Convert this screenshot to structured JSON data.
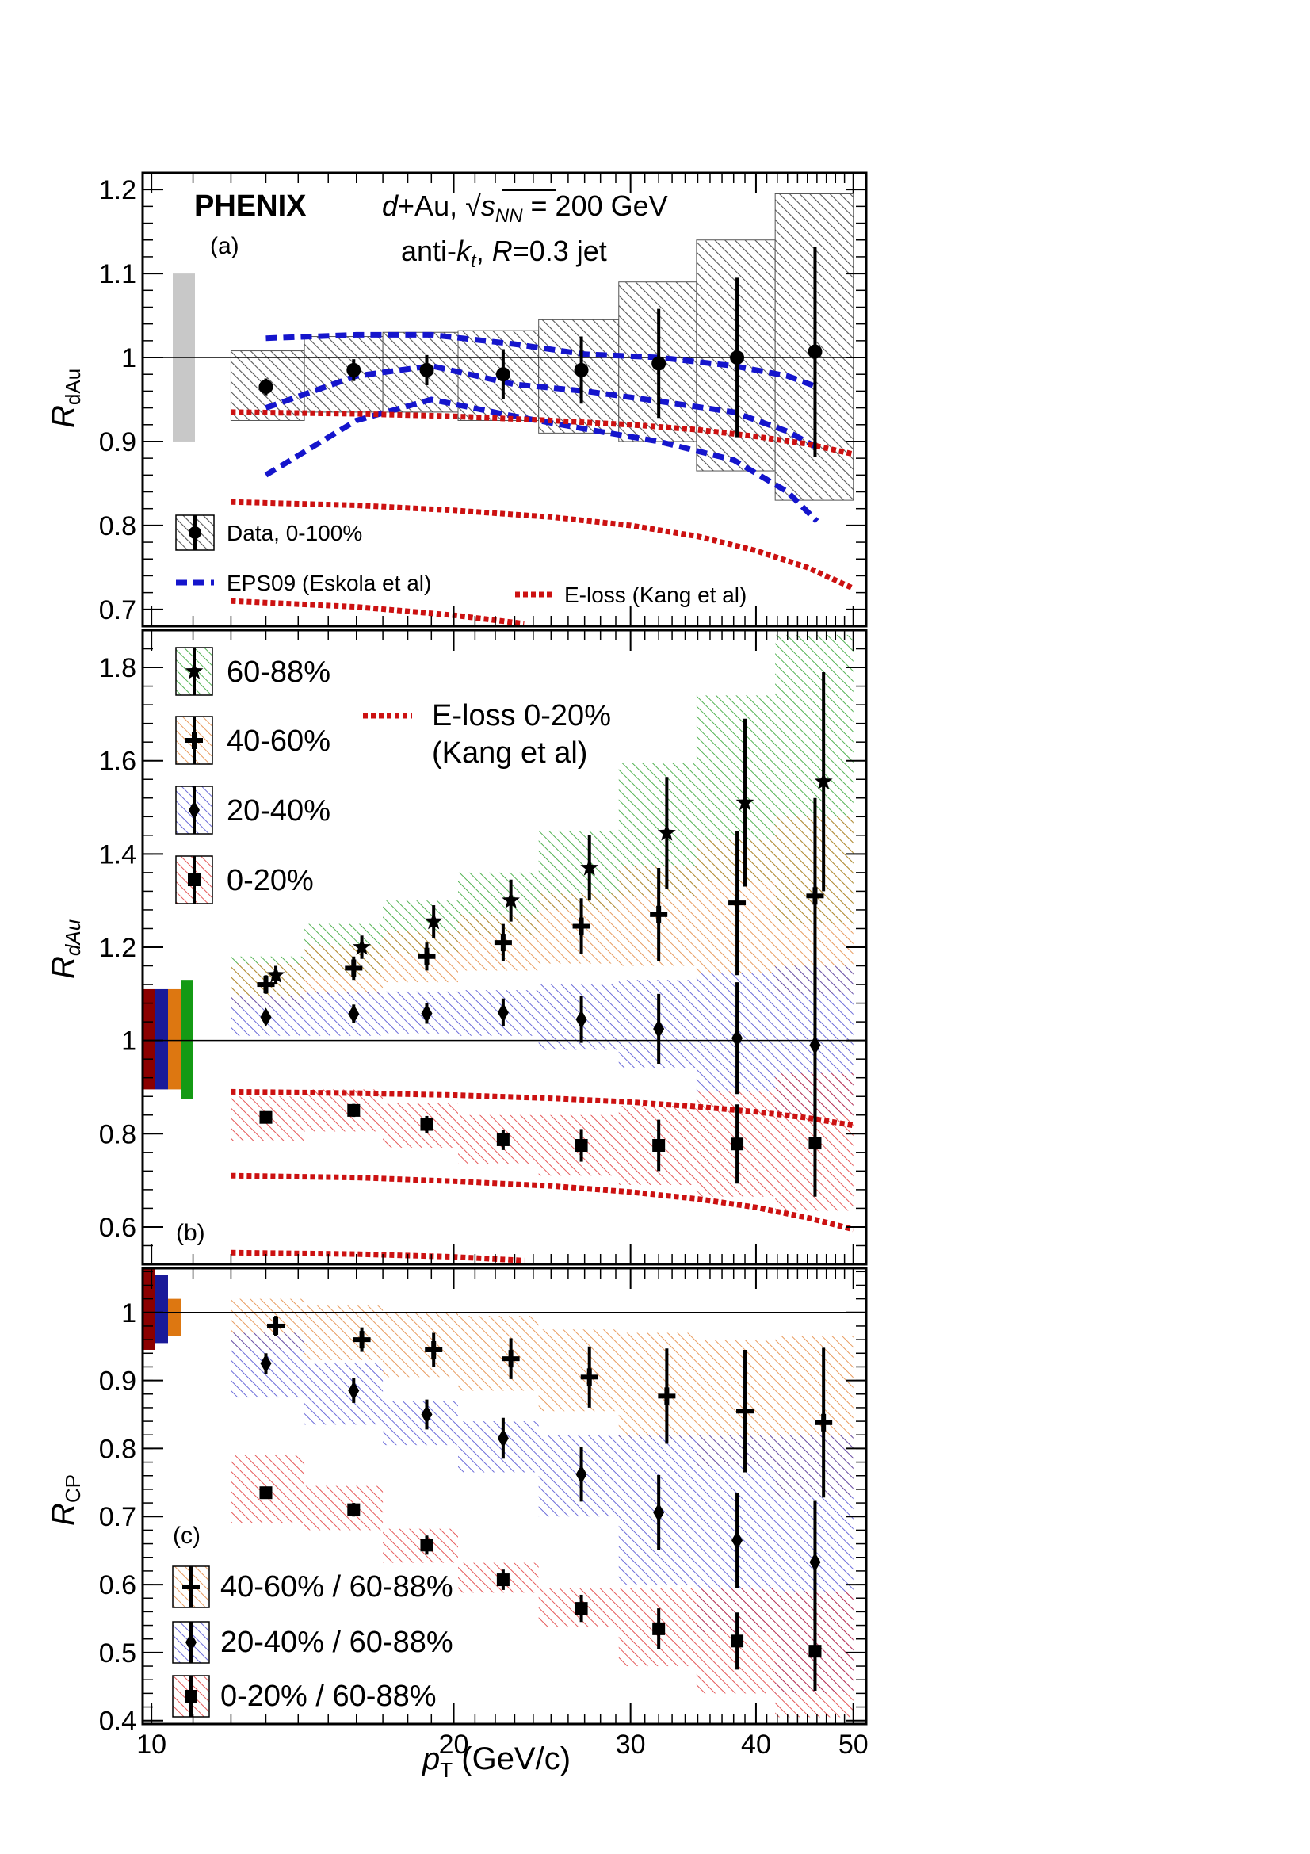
{
  "colors": {
    "data": "#000000",
    "syst_all": "#555555",
    "global_gray": "#c8c8c8",
    "eps09": "#1515cc",
    "eloss": "#cc1111",
    "c6088": "#1a9a1a",
    "c4060": "#e07a2a",
    "c2040": "#3a3acc",
    "c020": "#dd2222",
    "g6088": "#149a14",
    "g4060": "#dd7711",
    "g2040": "#1a1a99",
    "g020": "#8b0000"
  },
  "header": {
    "experiment": "PHENIX",
    "system_prefix": "d",
    "system_rest": "+Au, ",
    "sqrt_symbol": "√",
    "s_label": "s",
    "nn_label": "NN",
    "energy": " = 200 GeV",
    "jet_prefix": "anti-",
    "k_label": "k",
    "t_label": "t",
    "jet_mid": ", ",
    "r_label": "R",
    "jet_suffix": "=0.3 jet"
  },
  "xaxis": {
    "title_p": "p",
    "title_sub": "T",
    "title_unit": " (GeV/c)",
    "ticks": [
      10,
      20,
      30,
      40,
      50
    ],
    "tick_labels": [
      "10",
      "20",
      "30",
      "40",
      "50"
    ],
    "scale": "log",
    "range": [
      9.8,
      51.5
    ]
  },
  "chart_data": [
    {
      "type": "scatter",
      "panel": "a",
      "panel_label": "(a)",
      "ylabel_main": "R",
      "ylabel_sub": "dAu",
      "ylim": [
        0.68,
        1.22
      ],
      "y_ticks": [
        0.7,
        0.8,
        0.9,
        1.0,
        1.1,
        1.2
      ],
      "y_tick_labels": [
        "0.7",
        "0.8",
        "0.9",
        "1",
        "1.1",
        "1.2"
      ],
      "global_uncertainty": [
        0.9,
        1.1
      ],
      "series": [
        {
          "name": "Data, 0-100%",
          "marker": "circle",
          "x": [
            13.0,
            15.9,
            18.8,
            22.4,
            26.8,
            32.0,
            38.3,
            45.8
          ],
          "y": [
            0.965,
            0.985,
            0.985,
            0.98,
            0.985,
            0.993,
            1.0,
            1.007
          ],
          "stat_err": [
            0.01,
            0.013,
            0.018,
            0.03,
            0.04,
            0.065,
            0.095,
            0.125
          ],
          "syst": [
            [
              12.0,
              14.2,
              0.925,
              1.008
            ],
            [
              14.2,
              17.0,
              0.935,
              1.025
            ],
            [
              17.0,
              20.2,
              0.935,
              1.03
            ],
            [
              20.2,
              24.3,
              0.925,
              1.032
            ],
            [
              24.3,
              29.2,
              0.91,
              1.045
            ],
            [
              29.2,
              34.9,
              0.9,
              1.09
            ],
            [
              34.9,
              41.8,
              0.865,
              1.14
            ],
            [
              41.8,
              50.0,
              0.83,
              1.195
            ]
          ]
        }
      ],
      "theory": [
        {
          "name": "EPS09 (Eskola et al)",
          "style": "blue-dashed",
          "x": [
            13,
            16,
            19,
            23,
            27,
            32,
            38,
            43,
            46
          ],
          "y": [
            1.023,
            1.027,
            1.027,
            1.016,
            1.004,
            1.0,
            0.99,
            0.978,
            0.965
          ]
        },
        {
          "style": "blue-dashed",
          "x": [
            13,
            16,
            19,
            23,
            27,
            32,
            38,
            43,
            46
          ],
          "y": [
            0.94,
            0.978,
            0.99,
            0.968,
            0.96,
            0.948,
            0.935,
            0.912,
            0.893
          ]
        },
        {
          "style": "blue-dashed",
          "x": [
            13,
            16,
            19,
            23,
            27,
            32,
            38,
            43,
            46
          ],
          "y": [
            0.86,
            0.925,
            0.95,
            0.93,
            0.915,
            0.9,
            0.878,
            0.84,
            0.805
          ]
        },
        {
          "name": "E-loss (Kang et al)",
          "style": "red-dotted",
          "x": [
            12,
            16,
            20,
            25,
            30,
            35,
            40,
            45,
            50
          ],
          "y": [
            0.935,
            0.933,
            0.93,
            0.925,
            0.92,
            0.914,
            0.906,
            0.897,
            0.885
          ]
        },
        {
          "style": "red-dotted",
          "x": [
            12,
            16,
            20,
            25,
            30,
            35,
            40,
            45,
            50
          ],
          "y": [
            0.828,
            0.824,
            0.818,
            0.81,
            0.8,
            0.787,
            0.77,
            0.75,
            0.725
          ]
        },
        {
          "style": "red-dotted",
          "x": [
            12,
            16,
            20,
            23.5
          ],
          "y": [
            0.71,
            0.703,
            0.693,
            0.683
          ]
        }
      ],
      "legend": [
        "Data, 0-100%",
        "EPS09 (Eskola et al)",
        "E-loss (Kang et al)"
      ]
    },
    {
      "type": "scatter",
      "panel": "b",
      "panel_label": "(b)",
      "ylabel_main": "R",
      "ylabel_sub": "dAu",
      "ylim": [
        0.52,
        1.88
      ],
      "y_ticks": [
        0.6,
        0.8,
        1.0,
        1.2,
        1.4,
        1.6,
        1.8
      ],
      "y_tick_labels": [
        "0.6",
        "0.8",
        "1",
        "1.2",
        "1.4",
        "1.6",
        "1.8"
      ],
      "global_uncertainties": [
        {
          "centrality": "0-20%",
          "range": [
            0.895,
            1.11
          ]
        },
        {
          "centrality": "20-40%",
          "range": [
            0.895,
            1.11
          ]
        },
        {
          "centrality": "40-60%",
          "range": [
            0.895,
            1.11
          ]
        },
        {
          "centrality": "60-88%",
          "range": [
            0.875,
            1.13
          ]
        }
      ],
      "series": [
        {
          "name": "60-88%",
          "marker": "star",
          "x": [
            13.3,
            16.2,
            19.1,
            22.8,
            27.3,
            32.6,
            39.0,
            46.7
          ],
          "y": [
            1.14,
            1.2,
            1.255,
            1.3,
            1.37,
            1.445,
            1.51,
            1.555
          ],
          "stat_err": [
            0.02,
            0.025,
            0.035,
            0.045,
            0.07,
            0.12,
            0.18,
            0.235
          ],
          "syst": [
            [
              12.0,
              14.2,
              1.095,
              1.18
            ],
            [
              14.2,
              17.0,
              1.14,
              1.25
            ],
            [
              17.0,
              20.2,
              1.185,
              1.3
            ],
            [
              20.2,
              24.3,
              1.225,
              1.36
            ],
            [
              24.3,
              29.2,
              1.28,
              1.45
            ],
            [
              29.2,
              34.9,
              1.31,
              1.595
            ],
            [
              34.9,
              41.8,
              1.34,
              1.74
            ],
            [
              41.8,
              50.0,
              1.25,
              1.87
            ]
          ]
        },
        {
          "name": "40-60%",
          "marker": "cross",
          "x": [
            13.0,
            15.9,
            18.8,
            22.4,
            26.8,
            32.0,
            38.3,
            45.8
          ],
          "y": [
            1.12,
            1.155,
            1.18,
            1.21,
            1.245,
            1.27,
            1.295,
            1.31
          ],
          "stat_err": [
            0.02,
            0.025,
            0.03,
            0.04,
            0.06,
            0.1,
            0.155,
            0.21
          ],
          "syst": [
            [
              12.0,
              14.2,
              1.07,
              1.165
            ],
            [
              14.2,
              17.0,
              1.1,
              1.205
            ],
            [
              17.0,
              20.2,
              1.125,
              1.235
            ],
            [
              20.2,
              24.3,
              1.15,
              1.27
            ],
            [
              24.3,
              29.2,
              1.165,
              1.315
            ],
            [
              29.2,
              34.9,
              1.16,
              1.375
            ],
            [
              34.9,
              41.8,
              1.145,
              1.43
            ],
            [
              41.8,
              50.0,
              1.1,
              1.48
            ]
          ]
        },
        {
          "name": "20-40%",
          "marker": "diamond",
          "x": [
            13.0,
            15.9,
            18.8,
            22.4,
            26.8,
            32.0,
            38.3,
            45.8
          ],
          "y": [
            1.05,
            1.057,
            1.058,
            1.06,
            1.045,
            1.025,
            1.005,
            0.99
          ],
          "stat_err": [
            0.015,
            0.02,
            0.022,
            0.03,
            0.05,
            0.075,
            0.12,
            0.16
          ],
          "syst": [
            [
              12.0,
              14.2,
              1.01,
              1.095
            ],
            [
              14.2,
              17.0,
              1.01,
              1.105
            ],
            [
              17.0,
              20.2,
              1.015,
              1.105
            ],
            [
              20.2,
              24.3,
              1.01,
              1.108
            ],
            [
              24.3,
              29.2,
              0.98,
              1.12
            ],
            [
              29.2,
              34.9,
              0.94,
              1.13
            ],
            [
              34.9,
              41.8,
              0.89,
              1.145
            ],
            [
              41.8,
              50.0,
              0.84,
              1.16
            ]
          ]
        },
        {
          "name": "0-20%",
          "marker": "square",
          "x": [
            13.0,
            15.9,
            18.8,
            22.4,
            26.8,
            32.0,
            38.3,
            45.8
          ],
          "y": [
            0.835,
            0.85,
            0.82,
            0.787,
            0.775,
            0.775,
            0.778,
            0.78
          ],
          "stat_err": [
            0.012,
            0.014,
            0.018,
            0.022,
            0.035,
            0.055,
            0.085,
            0.115
          ],
          "syst": [
            [
              12.0,
              14.2,
              0.785,
              0.88
            ],
            [
              14.2,
              17.0,
              0.805,
              0.895
            ],
            [
              17.0,
              20.2,
              0.77,
              0.865
            ],
            [
              20.2,
              24.3,
              0.735,
              0.84
            ],
            [
              24.3,
              29.2,
              0.71,
              0.84
            ],
            [
              29.2,
              34.9,
              0.69,
              0.86
            ],
            [
              34.9,
              41.8,
              0.665,
              0.89
            ],
            [
              41.8,
              50.0,
              0.635,
              0.93
            ]
          ]
        }
      ],
      "theory": [
        {
          "name": "E-loss 0-20%",
          "name_line2": "(Kang et al)",
          "style": "red-dotted",
          "x": [
            12,
            16,
            20,
            25,
            30,
            35,
            40,
            45,
            50
          ],
          "y": [
            0.89,
            0.887,
            0.883,
            0.876,
            0.868,
            0.858,
            0.847,
            0.834,
            0.818
          ]
        },
        {
          "style": "red-dotted",
          "x": [
            12,
            16,
            20,
            25,
            30,
            35,
            40,
            45,
            50
          ],
          "y": [
            0.71,
            0.706,
            0.698,
            0.688,
            0.675,
            0.66,
            0.642,
            0.62,
            0.595
          ]
        },
        {
          "style": "red-dotted",
          "x": [
            12,
            16,
            20,
            23.5
          ],
          "y": [
            0.545,
            0.542,
            0.536,
            0.528
          ]
        }
      ],
      "legend": [
        "60-88%",
        "40-60%",
        "20-40%",
        "0-20%",
        "E-loss 0-20%",
        "(Kang et al)"
      ]
    },
    {
      "type": "scatter",
      "panel": "c",
      "panel_label": "(c)",
      "ylabel_main": "R",
      "ylabel_sub": "CP",
      "ylim": [
        0.395,
        1.065
      ],
      "y_ticks": [
        0.4,
        0.5,
        0.6,
        0.7,
        0.8,
        0.9,
        1.0
      ],
      "y_tick_labels": [
        "0.4",
        "0.5",
        "0.6",
        "0.7",
        "0.8",
        "0.9",
        "1"
      ],
      "global_uncertainties": [
        {
          "centrality": "0-20% / 60-88%",
          "range": [
            0.945,
            1.065
          ]
        },
        {
          "centrality": "20-40% / 60-88%",
          "range": [
            0.955,
            1.055
          ]
        },
        {
          "centrality": "40-60% / 60-88%",
          "range": [
            0.965,
            1.02
          ]
        }
      ],
      "series": [
        {
          "name": "40-60% / 60-88%",
          "marker": "cross",
          "x": [
            13.3,
            16.2,
            19.1,
            22.8,
            27.3,
            32.6,
            39.0,
            46.7
          ],
          "y": [
            0.98,
            0.96,
            0.945,
            0.932,
            0.905,
            0.877,
            0.855,
            0.838
          ],
          "stat_err": [
            0.015,
            0.018,
            0.025,
            0.03,
            0.045,
            0.07,
            0.09,
            0.11
          ],
          "syst": [
            [
              12.0,
              14.2,
              0.945,
              1.02
            ],
            [
              14.2,
              17.0,
              0.93,
              1.01
            ],
            [
              17.0,
              20.2,
              0.905,
              1.0
            ],
            [
              20.2,
              24.3,
              0.885,
              0.995
            ],
            [
              24.3,
              29.2,
              0.855,
              0.975
            ],
            [
              29.2,
              34.9,
              0.815,
              0.97
            ],
            [
              34.9,
              41.8,
              0.775,
              0.96
            ],
            [
              41.8,
              50.0,
              0.73,
              0.965
            ]
          ]
        },
        {
          "name": "20-40% / 60-88%",
          "marker": "diamond",
          "x": [
            13.0,
            15.9,
            18.8,
            22.4,
            26.8,
            32.0,
            38.3,
            45.8
          ],
          "y": [
            0.925,
            0.885,
            0.85,
            0.815,
            0.762,
            0.706,
            0.665,
            0.633
          ],
          "stat_err": [
            0.015,
            0.018,
            0.022,
            0.03,
            0.04,
            0.055,
            0.07,
            0.09
          ],
          "syst": [
            [
              12.0,
              14.2,
              0.875,
              0.97
            ],
            [
              14.2,
              17.0,
              0.835,
              0.925
            ],
            [
              17.0,
              20.2,
              0.805,
              0.87
            ],
            [
              20.2,
              24.3,
              0.765,
              0.84
            ],
            [
              24.3,
              29.2,
              0.7,
              0.82
            ],
            [
              29.2,
              34.9,
              0.6,
              0.82
            ],
            [
              34.9,
              41.8,
              0.53,
              0.82
            ],
            [
              41.8,
              50.0,
              0.44,
              0.82
            ]
          ]
        },
        {
          "name": "0-20% / 60-88%",
          "marker": "square",
          "x": [
            13.0,
            15.9,
            18.8,
            22.4,
            26.8,
            32.0,
            38.3,
            45.8
          ],
          "y": [
            0.735,
            0.71,
            0.658,
            0.607,
            0.565,
            0.535,
            0.517,
            0.502
          ],
          "stat_err": [
            0.008,
            0.01,
            0.014,
            0.015,
            0.02,
            0.03,
            0.042,
            0.058
          ],
          "syst": [
            [
              12.0,
              14.2,
              0.69,
              0.79
            ],
            [
              14.2,
              17.0,
              0.68,
              0.745
            ],
            [
              17.0,
              20.2,
              0.632,
              0.682
            ],
            [
              20.2,
              24.3,
              0.588,
              0.632
            ],
            [
              24.3,
              29.2,
              0.538,
              0.595
            ],
            [
              29.2,
              34.9,
              0.48,
              0.595
            ],
            [
              34.9,
              41.8,
              0.44,
              0.595
            ],
            [
              41.8,
              50.0,
              0.405,
              0.59
            ]
          ]
        }
      ],
      "legend": [
        "40-60% / 60-88%",
        "20-40% / 60-88%",
        "0-20% / 60-88%"
      ]
    }
  ]
}
